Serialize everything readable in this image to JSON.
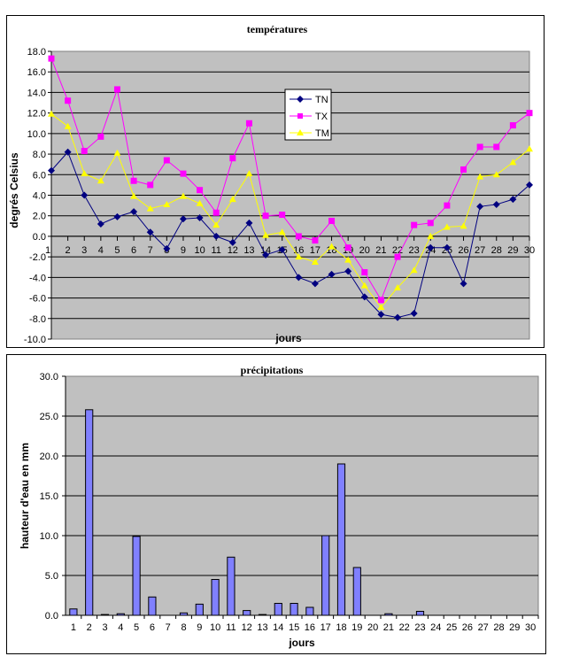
{
  "chart_data": [
    {
      "type": "line",
      "title": "températures",
      "xlabel": "jours",
      "ylabel": "degrés Celsius",
      "x": [
        1,
        2,
        3,
        4,
        5,
        6,
        7,
        8,
        9,
        10,
        11,
        12,
        13,
        14,
        15,
        16,
        17,
        18,
        19,
        20,
        21,
        22,
        23,
        24,
        25,
        26,
        27,
        28,
        29,
        30
      ],
      "ylim": [
        -10,
        18
      ],
      "yticks": [
        "18.0",
        "16.0",
        "14.0",
        "12.0",
        "10.0",
        "8.0",
        "6.0",
        "4.0",
        "2.0",
        "0.0",
        "-2.0",
        "-4.0",
        "-6.0",
        "-8.0",
        "-10.0"
      ],
      "grid": true,
      "legend": "top-center",
      "series": [
        {
          "name": "TN",
          "color": "#000080",
          "marker": "diamond",
          "values": [
            6.4,
            8.2,
            4.0,
            1.2,
            1.9,
            2.4,
            0.4,
            -1.2,
            1.7,
            1.8,
            0.0,
            -0.6,
            1.3,
            -1.8,
            -1.3,
            -4.0,
            -4.6,
            -3.7,
            -3.4,
            -5.9,
            -7.6,
            -7.9,
            -7.5,
            -1.1,
            -1.1,
            -4.6,
            2.9,
            3.1,
            3.6,
            5.0
          ]
        },
        {
          "name": "TX",
          "color": "#FF00FF",
          "marker": "square",
          "values": [
            17.3,
            13.2,
            8.3,
            9.7,
            14.3,
            5.4,
            5.0,
            7.4,
            6.1,
            4.5,
            2.3,
            7.6,
            11.0,
            2.0,
            2.1,
            0.0,
            -0.4,
            1.5,
            -1.1,
            -3.5,
            -6.2,
            -2.0,
            1.1,
            1.3,
            3.0,
            6.5,
            8.7,
            8.7,
            10.8,
            12.0
          ]
        },
        {
          "name": "TM",
          "color": "#FFFF00",
          "marker": "triangle",
          "values": [
            11.9,
            10.7,
            6.1,
            5.4,
            8.1,
            3.9,
            2.7,
            3.1,
            3.9,
            3.2,
            1.1,
            3.6,
            6.1,
            0.1,
            0.4,
            -2.0,
            -2.5,
            -1.0,
            -2.3,
            -4.8,
            -6.9,
            -5.0,
            -3.3,
            0.0,
            0.9,
            1.0,
            5.8,
            6.0,
            7.2,
            8.5
          ]
        }
      ]
    },
    {
      "type": "bar",
      "title": "précipitations",
      "xlabel": "jours",
      "ylabel": "hauteur d'eau en mm",
      "categories": [
        "1",
        "2",
        "3",
        "4",
        "5",
        "6",
        "7",
        "8",
        "9",
        "10",
        "11",
        "12",
        "13",
        "14",
        "15",
        "16",
        "17",
        "18",
        "19",
        "20",
        "21",
        "22",
        "23",
        "24",
        "25",
        "26",
        "27",
        "28",
        "29",
        "30"
      ],
      "ylim": [
        0,
        30
      ],
      "yticks": [
        "30.0",
        "25.0",
        "20.0",
        "15.0",
        "10.0",
        "5.0",
        "0.0"
      ],
      "grid": true,
      "color": "#8080FF",
      "values": [
        0.8,
        25.8,
        0.1,
        0.2,
        9.9,
        2.3,
        0,
        0.3,
        1.4,
        4.5,
        7.3,
        0.6,
        0.1,
        1.5,
        1.5,
        1.0,
        10.0,
        19.0,
        6.0,
        0,
        0.2,
        0,
        0.5,
        0,
        0,
        0,
        0,
        0,
        0,
        0
      ]
    }
  ]
}
